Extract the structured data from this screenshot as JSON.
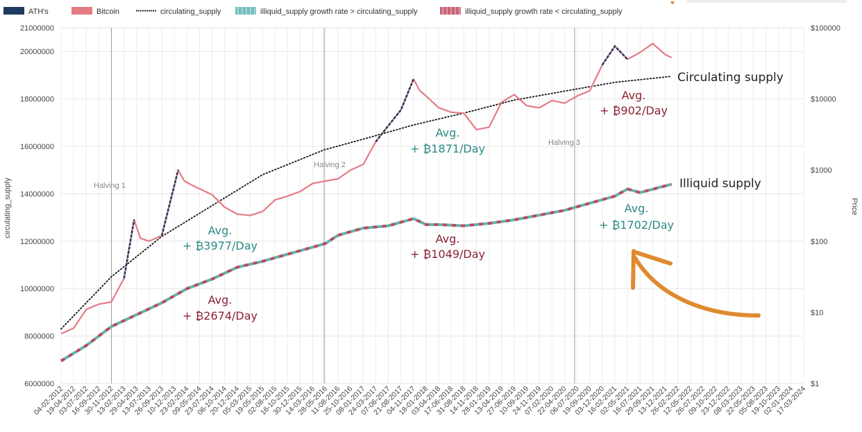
{
  "chart_data": {
    "type": "line",
    "y_left": {
      "label": "circulating_supply",
      "ticks": [
        6000000,
        8000000,
        10000000,
        12000000,
        14000000,
        16000000,
        18000000,
        20000000,
        21000000
      ],
      "ylim": [
        6000000,
        21000000
      ]
    },
    "y_right": {
      "label": "Price",
      "scale": "log",
      "ticks": [
        "$1",
        "$10",
        "$100",
        "$1000",
        "$10000",
        "$100000"
      ],
      "tick_values": [
        1,
        10,
        100,
        1000,
        10000,
        100000
      ]
    },
    "x_ticks": [
      "04-02-2012",
      "19-04-2012",
      "03-07-2012",
      "16-09-2012",
      "30-11-2012",
      "13-02-2013",
      "29-04-2013",
      "13-07-2013",
      "26-09-2013",
      "10-12-2013",
      "23-02-2014",
      "09-05-2014",
      "23-07-2014",
      "06-10-2014",
      "20-12-2014",
      "05-03-2015",
      "19-05-2015",
      "02-08-2015",
      "16-10-2015",
      "30-12-2015",
      "14-03-2016",
      "28-05-2016",
      "11-08-2016",
      "25-10-2016",
      "08-01-2017",
      "24-03-2017",
      "07-06-2017",
      "21-08-2017",
      "04-11-2017",
      "18-01-2018",
      "03-04-2018",
      "17-06-2018",
      "31-08-2018",
      "14-11-2018",
      "28-01-2019",
      "13-04-2019",
      "27-06-2019",
      "10-09-2019",
      "24-11-2019",
      "07-02-2020",
      "22-04-2020",
      "06-07-2020",
      "19-09-2020",
      "03-12-2020",
      "16-02-2021",
      "02-05-2021",
      "16-07-2021",
      "29-09-2021",
      "13-12-2021",
      "26-02-2022",
      "12-05-2022",
      "26-07-2022",
      "09-10-2022",
      "23-12-2022",
      "08-03-2023",
      "22-05-2023",
      "05-08-2023",
      "19-10-2023",
      "02-01-2024",
      "17-03-2024"
    ],
    "legend": [
      {
        "name": "ATH's",
        "color": "#1f3a5f",
        "style": "solid"
      },
      {
        "name": "Bitcoin",
        "color": "#e57a85",
        "style": "solid"
      },
      {
        "name": "circulating_supply",
        "color": "#111111",
        "style": "dotted"
      },
      {
        "name": "illiquid_supply growth rate > circulating_supply",
        "color": "#5fb3b3",
        "style": "dashed"
      },
      {
        "name": "illiquid_supply growth rate < circulating_supply",
        "color": "#c0485a",
        "style": "dashed"
      }
    ],
    "halvings": [
      {
        "label": "Halving 1",
        "x_index": 4
      },
      {
        "label": "Halving 2",
        "x_index": 20.9
      },
      {
        "label": "Halving 3",
        "x_index": 40.8
      }
    ],
    "circulating_supply": {
      "x_index": [
        0,
        4,
        8,
        12,
        16,
        20.9,
        24,
        28,
        32,
        36,
        40.8,
        44,
        48.5
      ],
      "values": [
        8300000,
        10500000,
        12200000,
        13500000,
        14800000,
        15850000,
        16300000,
        16900000,
        17400000,
        17950000,
        18400000,
        18700000,
        18950000
      ]
    },
    "illiquid_supply": {
      "x_index": [
        0,
        2,
        4,
        6,
        8,
        10,
        12,
        14,
        16,
        18,
        20,
        21,
        22,
        24,
        26,
        28,
        29,
        30,
        32,
        34,
        36,
        38,
        40,
        42,
        44,
        45,
        46,
        48.5
      ],
      "values": [
        6950000,
        7600000,
        8400000,
        8900000,
        9400000,
        10000000,
        10400000,
        10900000,
        11150000,
        11450000,
        11750000,
        11900000,
        12250000,
        12550000,
        12650000,
        12950000,
        12700000,
        12700000,
        12650000,
        12750000,
        12900000,
        13100000,
        13300000,
        13600000,
        13900000,
        14200000,
        14050000,
        14400000
      ]
    },
    "bitcoin_price": {
      "x_index": [
        0,
        1,
        2,
        3,
        4,
        5,
        5.8,
        6.3,
        7,
        8,
        9.3,
        9.8,
        10.5,
        12,
        13,
        14,
        15,
        16,
        17,
        18,
        19,
        20,
        21,
        22,
        23,
        24,
        25,
        26,
        27,
        28,
        28.5,
        29,
        30,
        31,
        32,
        33,
        34,
        35,
        36,
        37,
        38,
        39,
        40,
        41,
        42,
        43,
        44,
        45,
        46,
        47,
        48,
        48.5
      ],
      "values": [
        5,
        6,
        11,
        13,
        14,
        30,
        200,
        110,
        100,
        120,
        1000,
        700,
        600,
        450,
        300,
        240,
        230,
        260,
        380,
        430,
        500,
        650,
        700,
        750,
        1000,
        1200,
        2500,
        4200,
        7000,
        19000,
        13000,
        11000,
        7500,
        6500,
        6300,
        3700,
        4000,
        9000,
        11500,
        8000,
        7500,
        9500,
        8700,
        11000,
        13000,
        30000,
        55000,
        36000,
        45000,
        60000,
        42000,
        38000
      ]
    },
    "annotations": [
      {
        "line1": "Avg.",
        "line2": "+ ₿3977/Day",
        "color": "#2a8a84"
      },
      {
        "line1": "Avg.",
        "line2": "+ ₿2674/Day",
        "color": "#8a2232"
      },
      {
        "line1": "Avg.",
        "line2": "+ ₿1871/Day",
        "color": "#2a8a84"
      },
      {
        "line1": "Avg.",
        "line2": "+ ₿1049/Day",
        "color": "#8a2232"
      },
      {
        "line1": "Avg.",
        "line2": "+ ₿902/Day",
        "color": "#8a2232"
      },
      {
        "line1": "Avg.",
        "line2": "+ ₿1702/Day",
        "color": "#2a8a84"
      },
      {
        "line1": "Circulating supply",
        "line2": "",
        "color": "#222222"
      },
      {
        "line1": "Illiquid supply",
        "line2": "",
        "color": "#222222"
      }
    ],
    "colors": {
      "bitcoin": "#e57a85",
      "ath": "#1f3a5f",
      "teal": "#5fb3b3",
      "red": "#c0485a",
      "arrow": "#e08a30"
    }
  }
}
